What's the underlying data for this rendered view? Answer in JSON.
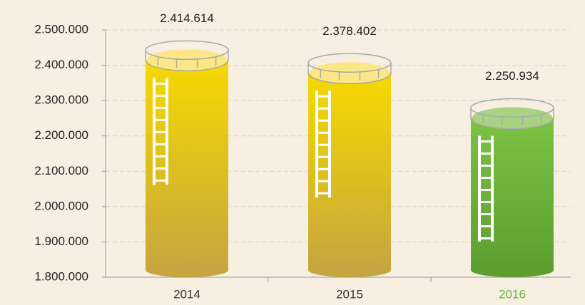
{
  "chart_data": {
    "type": "bar",
    "categories": [
      "2014",
      "2015",
      "2016"
    ],
    "values": [
      2414614,
      2378402,
      2250934
    ],
    "value_labels": [
      "2.414.614",
      "2.378.402",
      "2.250.934"
    ],
    "colors": [
      "#f6d900",
      "#f6d900",
      "#7cc243"
    ],
    "shade_colors": [
      "#c6a63f",
      "#c6a63f",
      "#5c9f2f"
    ],
    "cap_colors": [
      "#fbe785",
      "#fbe785",
      "#a9d383"
    ],
    "category_colors": [
      "#333333",
      "#333333",
      "#6db33f"
    ],
    "ylim": [
      1800000,
      2500000
    ],
    "yticks": [
      {
        "value": 1800000,
        "label": "1.800.000"
      },
      {
        "value": 1900000,
        "label": "1.900.000"
      },
      {
        "value": 2000000,
        "label": "2.000.000"
      },
      {
        "value": 2100000,
        "label": "2.100.000"
      },
      {
        "value": 2200000,
        "label": "2.200.000"
      },
      {
        "value": 2300000,
        "label": "2.300.000"
      },
      {
        "value": 2400000,
        "label": "2.400.000"
      },
      {
        "value": 2500000,
        "label": "2.500.000"
      }
    ],
    "grid": true
  }
}
